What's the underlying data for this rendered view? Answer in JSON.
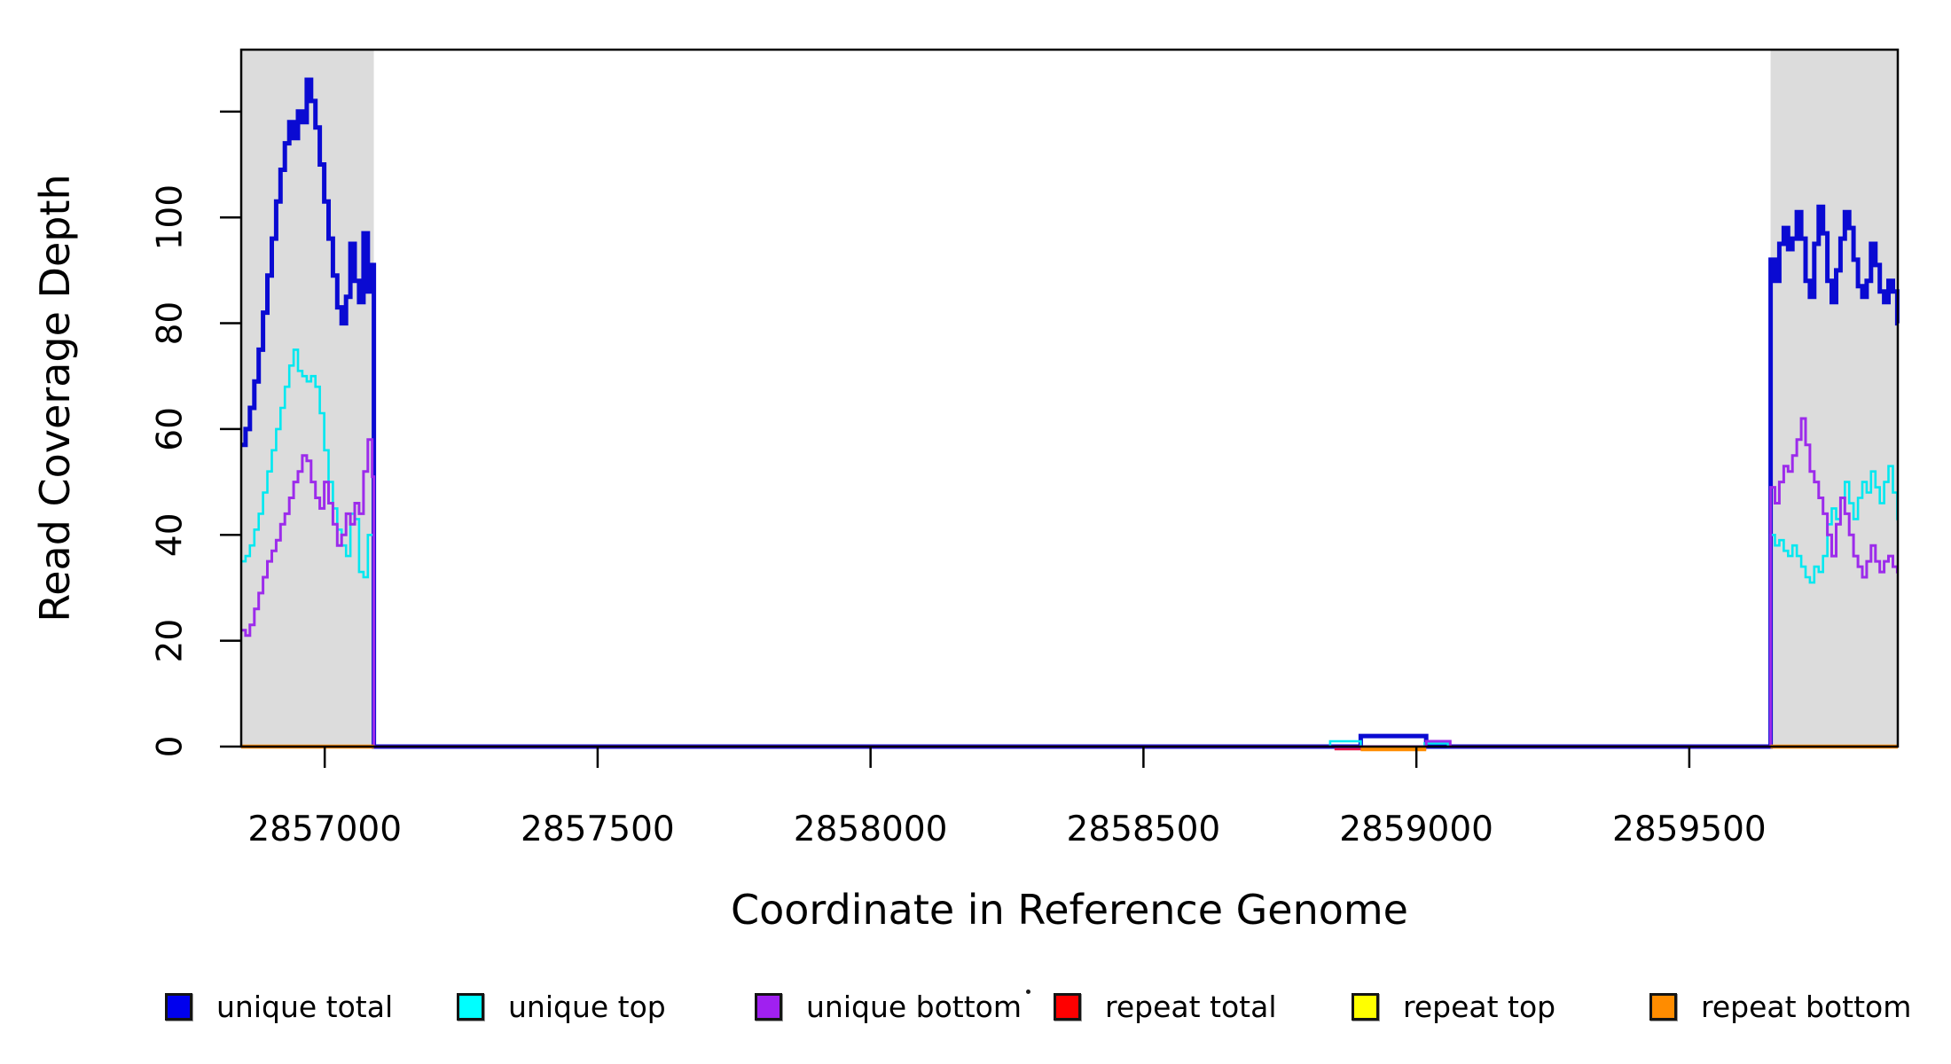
{
  "figure": {
    "x_axis_title": "Coordinate in Reference Genome",
    "y_axis_title": "Read Coverage Depth"
  },
  "legend": {
    "items": [
      {
        "label": "unique total",
        "color": "#0000EE"
      },
      {
        "label": "unique top",
        "color": "#00FFFF"
      },
      {
        "label": "unique bottom",
        "color": "#A020F0"
      },
      {
        "label": "repeat total",
        "color": "#FF0000"
      },
      {
        "label": "repeat top",
        "color": "#FFFF00"
      },
      {
        "label": "repeat bottom",
        "color": "#FF8C00"
      }
    ]
  },
  "chart_data": {
    "type": "line",
    "subtype": "step-coverage",
    "title": "",
    "xlabel": "Coordinate in Reference Genome",
    "ylabel": "Read Coverage Depth",
    "xlim": [
      2856847,
      2859882
    ],
    "ylim": [
      0,
      131.7
    ],
    "grid": false,
    "legend_position": "bottom",
    "background_color": "#ffffff",
    "highlight_band_color": "#DCDCDC",
    "highlight_regions": [
      {
        "x0": 2856847,
        "x1": 2857090
      },
      {
        "x0": 2859649,
        "x1": 2859882
      }
    ],
    "x_ticks": [
      {
        "value": 2857000,
        "label": "2857000"
      },
      {
        "value": 2857500,
        "label": "2857500"
      },
      {
        "value": 2858000,
        "label": "2858000"
      },
      {
        "value": 2858500,
        "label": "2858500"
      },
      {
        "value": 2859000,
        "label": "2859000"
      },
      {
        "value": 2859500,
        "label": "2859500"
      }
    ],
    "y_ticks": [
      {
        "value": 0,
        "label": "0"
      },
      {
        "value": 20,
        "label": "20"
      },
      {
        "value": 40,
        "label": "40"
      },
      {
        "value": 60,
        "label": "60"
      },
      {
        "value": 80,
        "label": "80"
      },
      {
        "value": 100,
        "label": "100"
      },
      {
        "value": 120,
        "label": ""
      }
    ],
    "series": [
      {
        "name": "unique total",
        "color": "#0A0AD2",
        "width": 5,
        "segments": [
          [
            [
              2856847,
              57
            ],
            [
              2856855,
              60
            ],
            [
              2856863,
              64
            ],
            [
              2856871,
              69
            ],
            [
              2856879,
              75
            ],
            [
              2856887,
              82
            ],
            [
              2856895,
              89
            ],
            [
              2856903,
              96
            ],
            [
              2856911,
              103
            ],
            [
              2856919,
              109
            ],
            [
              2856927,
              114
            ],
            [
              2856935,
              118
            ],
            [
              2856943,
              115
            ],
            [
              2856951,
              120
            ],
            [
              2856959,
              118
            ],
            [
              2856967,
              126
            ],
            [
              2856975,
              122
            ],
            [
              2856983,
              117
            ],
            [
              2856991,
              110
            ],
            [
              2856999,
              103
            ],
            [
              2857007,
              96
            ],
            [
              2857015,
              89
            ],
            [
              2857023,
              83
            ],
            [
              2857031,
              80
            ],
            [
              2857039,
              85
            ],
            [
              2857047,
              95
            ],
            [
              2857055,
              88
            ],
            [
              2857063,
              84
            ],
            [
              2857071,
              97
            ],
            [
              2857079,
              86
            ],
            [
              2857087,
              91
            ],
            [
              2857090,
              0
            ],
            [
              2858898,
              2
            ],
            [
              2859018,
              0
            ],
            [
              2859649,
              92
            ],
            [
              2859657,
              88
            ],
            [
              2859665,
              95
            ],
            [
              2859673,
              98
            ],
            [
              2859681,
              94
            ],
            [
              2859689,
              96
            ],
            [
              2859697,
              101
            ],
            [
              2859705,
              96
            ],
            [
              2859713,
              88
            ],
            [
              2859721,
              85
            ],
            [
              2859729,
              95
            ],
            [
              2859737,
              102
            ],
            [
              2859745,
              97
            ],
            [
              2859753,
              88
            ],
            [
              2859761,
              84
            ],
            [
              2859769,
              90
            ],
            [
              2859777,
              96
            ],
            [
              2859785,
              101
            ],
            [
              2859793,
              98
            ],
            [
              2859801,
              92
            ],
            [
              2859809,
              87
            ],
            [
              2859817,
              85
            ],
            [
              2859825,
              88
            ],
            [
              2859833,
              95
            ],
            [
              2859841,
              91
            ],
            [
              2859849,
              86
            ],
            [
              2859857,
              84
            ],
            [
              2859865,
              88
            ],
            [
              2859873,
              86
            ],
            [
              2859881,
              80
            ],
            [
              2859882,
              80
            ]
          ]
        ]
      },
      {
        "name": "unique top",
        "color": "#00E8F0",
        "width": 2.6,
        "segments": [
          [
            [
              2856847,
              35
            ],
            [
              2856855,
              36
            ],
            [
              2856863,
              38
            ],
            [
              2856871,
              41
            ],
            [
              2856879,
              44
            ],
            [
              2856887,
              48
            ],
            [
              2856895,
              52
            ],
            [
              2856903,
              56
            ],
            [
              2856911,
              60
            ],
            [
              2856919,
              64
            ],
            [
              2856927,
              68
            ],
            [
              2856935,
              72
            ],
            [
              2856943,
              75
            ],
            [
              2856951,
              71
            ],
            [
              2856959,
              70
            ],
            [
              2856967,
              69
            ],
            [
              2856975,
              70
            ],
            [
              2856983,
              68
            ],
            [
              2856991,
              63
            ],
            [
              2856999,
              56
            ],
            [
              2857007,
              50
            ],
            [
              2857015,
              45
            ],
            [
              2857023,
              41
            ],
            [
              2857031,
              38
            ],
            [
              2857039,
              36
            ],
            [
              2857047,
              44
            ],
            [
              2857055,
              43
            ],
            [
              2857063,
              33
            ],
            [
              2857071,
              32
            ],
            [
              2857079,
              40
            ],
            [
              2857087,
              40
            ],
            [
              2857090,
              0
            ],
            [
              2858842,
              1
            ],
            [
              2858898,
              0
            ],
            [
              2859015,
              0.6
            ],
            [
              2859058,
              0
            ],
            [
              2859649,
              40
            ],
            [
              2859657,
              38
            ],
            [
              2859665,
              39
            ],
            [
              2859673,
              37
            ],
            [
              2859681,
              36
            ],
            [
              2859689,
              38
            ],
            [
              2859697,
              36
            ],
            [
              2859705,
              34
            ],
            [
              2859713,
              32
            ],
            [
              2859721,
              31
            ],
            [
              2859729,
              34
            ],
            [
              2859737,
              33
            ],
            [
              2859745,
              36
            ],
            [
              2859753,
              42
            ],
            [
              2859761,
              45
            ],
            [
              2859769,
              43
            ],
            [
              2859777,
              47
            ],
            [
              2859785,
              50
            ],
            [
              2859793,
              46
            ],
            [
              2859801,
              43
            ],
            [
              2859809,
              47
            ],
            [
              2859817,
              50
            ],
            [
              2859825,
              48
            ],
            [
              2859833,
              52
            ],
            [
              2859841,
              49
            ],
            [
              2859849,
              46
            ],
            [
              2859857,
              50
            ],
            [
              2859865,
              53
            ],
            [
              2859873,
              48
            ],
            [
              2859881,
              43
            ],
            [
              2859882,
              43
            ]
          ]
        ]
      },
      {
        "name": "unique bottom",
        "color": "#9C2BEB",
        "width": 3,
        "segments": [
          [
            [
              2856847,
              22
            ],
            [
              2856855,
              21
            ],
            [
              2856863,
              23
            ],
            [
              2856871,
              26
            ],
            [
              2856879,
              29
            ],
            [
              2856887,
              32
            ],
            [
              2856895,
              35
            ],
            [
              2856903,
              37
            ],
            [
              2856911,
              39
            ],
            [
              2856919,
              42
            ],
            [
              2856927,
              44
            ],
            [
              2856935,
              47
            ],
            [
              2856943,
              50
            ],
            [
              2856951,
              52
            ],
            [
              2856959,
              55
            ],
            [
              2856967,
              54
            ],
            [
              2856975,
              50
            ],
            [
              2856983,
              47
            ],
            [
              2856991,
              45
            ],
            [
              2856999,
              50
            ],
            [
              2857007,
              46
            ],
            [
              2857015,
              42
            ],
            [
              2857023,
              38
            ],
            [
              2857031,
              40
            ],
            [
              2857039,
              44
            ],
            [
              2857047,
              42
            ],
            [
              2857055,
              46
            ],
            [
              2857063,
              44
            ],
            [
              2857071,
              52
            ],
            [
              2857079,
              58
            ],
            [
              2857087,
              51
            ],
            [
              2857090,
              0
            ],
            [
              2859018,
              1
            ],
            [
              2859062,
              0
            ],
            [
              2859649,
              49
            ],
            [
              2859657,
              46
            ],
            [
              2859665,
              50
            ],
            [
              2859673,
              53
            ],
            [
              2859681,
              52
            ],
            [
              2859689,
              55
            ],
            [
              2859697,
              58
            ],
            [
              2859705,
              62
            ],
            [
              2859713,
              57
            ],
            [
              2859721,
              52
            ],
            [
              2859729,
              50
            ],
            [
              2859737,
              47
            ],
            [
              2859745,
              44
            ],
            [
              2859753,
              40
            ],
            [
              2859761,
              36
            ],
            [
              2859769,
              42
            ],
            [
              2859777,
              47
            ],
            [
              2859785,
              44
            ],
            [
              2859793,
              40
            ],
            [
              2859801,
              36
            ],
            [
              2859809,
              34
            ],
            [
              2859817,
              32
            ],
            [
              2859825,
              35
            ],
            [
              2859833,
              38
            ],
            [
              2859841,
              35
            ],
            [
              2859849,
              33
            ],
            [
              2859857,
              35
            ],
            [
              2859865,
              36
            ],
            [
              2859873,
              34
            ],
            [
              2859881,
              33
            ],
            [
              2859882,
              33
            ]
          ]
        ]
      },
      {
        "name": "repeat total",
        "color": "#E81448",
        "width": 2.6,
        "segments": [
          [
            [
              2856847,
              0
            ],
            [
              2857090,
              0
            ]
          ],
          [
            [
              2858850,
              -0.5
            ],
            [
              2859018,
              -0.5
            ]
          ],
          [
            [
              2859649,
              0
            ],
            [
              2859882,
              0
            ]
          ]
        ]
      },
      {
        "name": "repeat top",
        "color": "#FFFF00",
        "width": 2.6,
        "segments": [
          [
            [
              2856847,
              0
            ],
            [
              2857090,
              0
            ]
          ],
          [
            [
              2859649,
              0
            ],
            [
              2859882,
              0
            ]
          ]
        ]
      },
      {
        "name": "repeat bottom",
        "color": "#FF8C00",
        "width": 4.5,
        "segments": [
          [
            [
              2856847,
              0
            ],
            [
              2857090,
              0
            ]
          ],
          [
            [
              2858898,
              -0.5
            ],
            [
              2859018,
              -0.5
            ]
          ],
          [
            [
              2859649,
              0
            ],
            [
              2859882,
              0
            ]
          ]
        ]
      }
    ]
  }
}
